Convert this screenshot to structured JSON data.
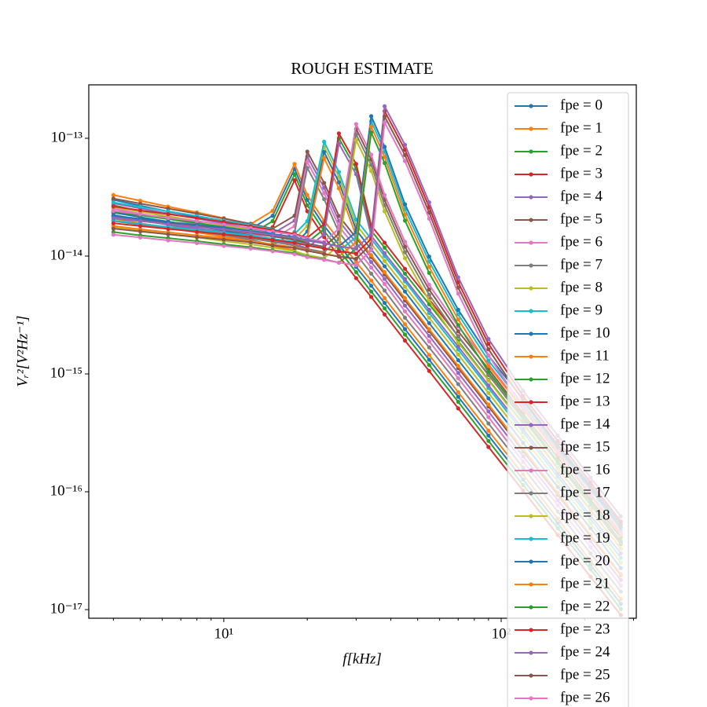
{
  "chart_data": {
    "type": "line",
    "title": "ROUGH ESTIMATE",
    "xlabel": "f[kHz]",
    "ylabel": "Vᵣ²[V²Hz⁻¹]",
    "xscale": "log",
    "yscale": "log",
    "legend": "upper right",
    "grid": false,
    "xlim": [
      3.26,
      307
    ],
    "ylim": [
      8.45e-18,
      2.84e-13
    ],
    "xticks": [
      {
        "value": 10,
        "label": "10¹"
      },
      {
        "value": 100,
        "label": "10²"
      }
    ],
    "xminorticks": [
      4,
      5,
      6,
      7,
      8,
      9,
      20,
      30,
      40,
      50,
      60,
      70,
      80,
      90,
      200,
      300
    ],
    "yticks": [
      {
        "value": 1e-17,
        "label": "10⁻¹⁷"
      },
      {
        "value": 1e-16,
        "label": "10⁻¹⁶"
      },
      {
        "value": 1e-15,
        "label": "10⁻¹⁵"
      },
      {
        "value": 1e-14,
        "label": "10⁻¹⁴"
      },
      {
        "value": 1e-13,
        "label": "10⁻¹³"
      }
    ],
    "x": [
      4,
      5,
      6.3,
      8,
      10,
      12.5,
      15,
      18,
      20,
      23,
      26,
      30,
      34,
      38,
      45,
      55,
      70,
      90,
      120,
      160,
      210,
      270
    ],
    "series": [
      {
        "name": "fpe = 0",
        "color": "#1f77b4",
        "values": [
          3e-14,
          2.68e-14,
          2.39e-14,
          2.14e-14,
          1.91e-14,
          1.7e-14,
          2.2e-14,
          5.5e-14,
          3e-14,
          1.81e-14,
          1.25e-14,
          8.1e-15,
          5.6e-15,
          4e-15,
          2.4e-15,
          1.32e-15,
          6.4e-16,
          3e-16,
          1.27e-16,
          5.4e-17,
          2.4e-17,
          1.12e-17
        ]
      },
      {
        "name": "fpe = 1",
        "color": "#ff7f0e",
        "values": [
          3.3e-14,
          2.95e-14,
          2.63e-14,
          2.35e-14,
          2.1e-14,
          1.87e-14,
          2.42e-14,
          6.05e-14,
          3.3e-14,
          1.99e-14,
          1.38e-14,
          8.9e-15,
          6.2e-15,
          4.4e-15,
          2.64e-15,
          1.45e-15,
          7e-16,
          3.3e-16,
          1.4e-16,
          5.9e-17,
          2.6e-17,
          1.23e-17
        ]
      },
      {
        "name": "fpe = 2",
        "color": "#2ca02c",
        "values": [
          2.7e-14,
          2.41e-14,
          2.15e-14,
          1.93e-14,
          1.72e-14,
          1.53e-14,
          1.98e-14,
          4.95e-14,
          2.7e-14,
          1.63e-14,
          1.13e-14,
          7.3e-15,
          5e-15,
          3.6e-15,
          2.16e-15,
          1.19e-15,
          5.8e-16,
          2.7e-16,
          1.14e-16,
          4.9e-17,
          2.2e-17,
          1.01e-17
        ]
      },
      {
        "name": "fpe = 3",
        "color": "#d62728",
        "values": [
          2.4e-14,
          2.14e-14,
          1.91e-14,
          1.71e-14,
          1.53e-14,
          1.36e-14,
          1.76e-14,
          4.4e-14,
          2.4e-14,
          1.45e-14,
          1e-14,
          6.5e-15,
          4.5e-15,
          3.2e-15,
          1.92e-15,
          1.06e-15,
          5.1e-16,
          2.4e-16,
          1.02e-16,
          4.3e-17,
          1.9e-17,
          9e-18
        ]
      },
      {
        "name": "fpe = 4",
        "color": "#9467bd",
        "values": [
          2.8e-14,
          2.54e-14,
          2.3e-14,
          2.08e-14,
          1.89e-14,
          1.71e-14,
          1.55e-14,
          2e-14,
          7e-14,
          3.8e-14,
          1.99e-14,
          1.3e-14,
          8.9e-15,
          6.4e-15,
          3.8e-15,
          2.1e-15,
          1.02e-15,
          4.8e-16,
          2e-16,
          8.5e-17,
          3.8e-17,
          1.78e-17
        ]
      },
      {
        "name": "fpe = 5",
        "color": "#8c564b",
        "values": [
          3.08e-14,
          2.79e-14,
          2.53e-14,
          2.29e-14,
          2.08e-14,
          1.88e-14,
          1.71e-14,
          2.2e-14,
          7.7e-14,
          4.18e-14,
          2.19e-14,
          1.43e-14,
          9.8e-15,
          7e-15,
          4.2e-15,
          2.31e-15,
          1.12e-15,
          5.3e-16,
          2.2e-16,
          9.4e-17,
          4.2e-17,
          1.96e-17
        ]
      },
      {
        "name": "fpe = 6",
        "color": "#e377c2",
        "values": [
          2.52e-14,
          2.29e-14,
          2.07e-14,
          1.87e-14,
          1.7e-14,
          1.54e-14,
          1.4e-14,
          1.8e-14,
          6.3e-14,
          3.42e-14,
          1.79e-14,
          1.17e-14,
          8e-15,
          5.8e-15,
          3.4e-15,
          1.89e-15,
          9.2e-16,
          4.3e-16,
          1.8e-16,
          7.7e-17,
          3.4e-17,
          1.6e-17
        ]
      },
      {
        "name": "fpe = 7",
        "color": "#7f7f7f",
        "values": [
          2.24e-14,
          2.03e-14,
          1.84e-14,
          1.66e-14,
          1.51e-14,
          1.37e-14,
          1.24e-14,
          1.6e-14,
          5.6e-14,
          3.04e-14,
          1.59e-14,
          1.04e-14,
          7.1e-15,
          5.1e-15,
          3e-15,
          1.68e-15,
          8.2e-16,
          3.8e-16,
          1.6e-16,
          6.8e-17,
          3e-17,
          1.42e-17
        ]
      },
      {
        "name": "fpe = 8",
        "color": "#bcbd22",
        "values": [
          2.6e-14,
          2.38e-14,
          2.18e-14,
          1.99e-14,
          1.82e-14,
          1.67e-14,
          1.53e-14,
          1.4e-14,
          1.8e-14,
          8.5e-14,
          4.7e-14,
          1.85e-14,
          1.27e-14,
          9.1e-15,
          5.5e-15,
          3e-15,
          1.46e-15,
          6.9e-16,
          2.9e-16,
          1.22e-16,
          5.4e-17,
          2.5e-17
        ]
      },
      {
        "name": "fpe = 9",
        "color": "#17becf",
        "values": [
          2.86e-14,
          2.62e-14,
          2.4e-14,
          2.19e-14,
          2e-14,
          1.84e-14,
          1.68e-14,
          1.54e-14,
          1.98e-14,
          9.35e-14,
          5.17e-14,
          2.04e-14,
          1.4e-14,
          1e-14,
          6.1e-15,
          3.3e-15,
          1.61e-15,
          7.6e-16,
          3.2e-16,
          1.34e-16,
          5.9e-17,
          2.75e-17
        ]
      },
      {
        "name": "fpe = 10",
        "color": "#1f77b4",
        "values": [
          2.34e-14,
          2.14e-14,
          1.96e-14,
          1.79e-14,
          1.64e-14,
          1.5e-14,
          1.38e-14,
          1.26e-14,
          1.62e-14,
          7.65e-14,
          4.23e-14,
          1.67e-14,
          1.14e-14,
          8.2e-15,
          5e-15,
          2.7e-15,
          1.31e-15,
          6.2e-16,
          2.6e-16,
          1.1e-16,
          4.9e-17,
          2.25e-17
        ]
      },
      {
        "name": "fpe = 11",
        "color": "#ff7f0e",
        "values": [
          2.08e-14,
          1.9e-14,
          1.74e-14,
          1.59e-14,
          1.46e-14,
          1.34e-14,
          1.22e-14,
          1.12e-14,
          1.44e-14,
          6.8e-14,
          3.76e-14,
          1.48e-14,
          1.02e-14,
          7.3e-15,
          4.4e-15,
          2.4e-15,
          1.17e-15,
          5.5e-16,
          2.3e-16,
          9.8e-17,
          4.3e-17,
          2e-17
        ]
      },
      {
        "name": "fpe = 12",
        "color": "#2ca02c",
        "values": [
          2.4e-14,
          2.22e-14,
          2.06e-14,
          1.91e-14,
          1.77e-14,
          1.63e-14,
          1.51e-14,
          1.4e-14,
          1.3e-14,
          1.7e-14,
          1e-13,
          5.5e-14,
          1.65e-14,
          1.18e-14,
          7.1e-15,
          3.9e-15,
          1.9e-15,
          8.9e-16,
          3.8e-16,
          1.59e-16,
          7e-17,
          3.3e-17
        ]
      },
      {
        "name": "fpe = 13",
        "color": "#d62728",
        "values": [
          2.64e-14,
          2.44e-14,
          2.27e-14,
          2.1e-14,
          1.95e-14,
          1.79e-14,
          1.66e-14,
          1.54e-14,
          1.43e-14,
          1.87e-14,
          1.1e-13,
          6.05e-14,
          1.82e-14,
          1.3e-14,
          7.8e-15,
          4.3e-15,
          2.09e-15,
          9.8e-16,
          4.2e-16,
          1.75e-16,
          7.7e-17,
          3.6e-17
        ]
      },
      {
        "name": "fpe = 14",
        "color": "#9467bd",
        "values": [
          2.16e-14,
          2e-14,
          1.85e-14,
          1.72e-14,
          1.59e-14,
          1.47e-14,
          1.36e-14,
          1.26e-14,
          1.17e-14,
          1.53e-14,
          9e-14,
          4.95e-14,
          1.49e-14,
          1.06e-14,
          6.4e-15,
          3.5e-15,
          1.71e-15,
          8e-16,
          3.4e-16,
          1.43e-16,
          6.3e-17,
          3e-17
        ]
      },
      {
        "name": "fpe = 15",
        "color": "#8c564b",
        "values": [
          2.2e-14,
          2.06e-14,
          1.92e-14,
          1.8e-14,
          1.68e-14,
          1.57e-14,
          1.47e-14,
          1.37e-14,
          1.28e-14,
          1.2e-14,
          1.55e-14,
          1.2e-13,
          6.6e-14,
          3e-14,
          1.2e-14,
          5.2e-15,
          2.3e-15,
          1.1e-15,
          4.6e-16,
          1.95e-16,
          8.6e-17,
          4.1e-17
        ]
      },
      {
        "name": "fpe = 16",
        "color": "#e377c2",
        "values": [
          2.42e-14,
          2.27e-14,
          2.11e-14,
          1.98e-14,
          1.85e-14,
          1.73e-14,
          1.62e-14,
          1.51e-14,
          1.41e-14,
          1.32e-14,
          1.71e-14,
          1.32e-13,
          7.26e-14,
          3.3e-14,
          1.32e-14,
          5.7e-15,
          2.53e-15,
          1.21e-15,
          5.1e-16,
          2.15e-16,
          9.5e-17,
          4.5e-17
        ]
      },
      {
        "name": "fpe = 17",
        "color": "#7f7f7f",
        "values": [
          1.98e-14,
          1.85e-14,
          1.73e-14,
          1.62e-14,
          1.51e-14,
          1.41e-14,
          1.32e-14,
          1.23e-14,
          1.15e-14,
          1.08e-14,
          1.4e-14,
          1.08e-13,
          5.94e-14,
          2.7e-14,
          1.08e-14,
          4.7e-15,
          2.07e-15,
          9.9e-16,
          4.1e-16,
          1.76e-16,
          7.7e-17,
          3.7e-17
        ]
      },
      {
        "name": "fpe = 18",
        "color": "#bcbd22",
        "values": [
          1.76e-14,
          1.65e-14,
          1.54e-14,
          1.44e-14,
          1.34e-14,
          1.26e-14,
          1.18e-14,
          1.1e-14,
          1.02e-14,
          9.6e-15,
          1.24e-14,
          9.6e-14,
          5.28e-14,
          2.4e-14,
          9.6e-15,
          4.2e-15,
          1.84e-15,
          8.8e-16,
          3.7e-16,
          1.56e-16,
          6.9e-17,
          3.3e-17
        ]
      },
      {
        "name": "fpe = 19",
        "color": "#17becf",
        "values": [
          2e-14,
          1.88e-14,
          1.77e-14,
          1.67e-14,
          1.58e-14,
          1.49e-14,
          1.4e-14,
          1.32e-14,
          1.24e-14,
          1.17e-14,
          1.1e-14,
          1.45e-14,
          1.4e-13,
          7.7e-14,
          2.5e-14,
          9e-15,
          3.2e-15,
          1.3e-15,
          5.5e-16,
          2.3e-16,
          1.03e-16,
          4.8e-17
        ]
      },
      {
        "name": "fpe = 20",
        "color": "#1f77b4",
        "values": [
          2.2e-14,
          2.07e-14,
          1.95e-14,
          1.84e-14,
          1.74e-14,
          1.64e-14,
          1.54e-14,
          1.45e-14,
          1.36e-14,
          1.29e-14,
          1.21e-14,
          1.6e-14,
          1.54e-13,
          8.47e-14,
          2.75e-14,
          9.9e-15,
          3.5e-15,
          1.43e-15,
          6.1e-16,
          2.5e-16,
          1.13e-16,
          5.3e-17
        ]
      },
      {
        "name": "fpe = 21",
        "color": "#ff7f0e",
        "values": [
          1.8e-14,
          1.69e-14,
          1.59e-14,
          1.5e-14,
          1.42e-14,
          1.34e-14,
          1.26e-14,
          1.19e-14,
          1.12e-14,
          1.05e-14,
          9.9e-15,
          1.31e-14,
          1.26e-13,
          6.93e-14,
          2.25e-14,
          8.1e-15,
          2.9e-15,
          1.17e-15,
          5e-16,
          2.1e-16,
          9.3e-17,
          4.3e-17
        ]
      },
      {
        "name": "fpe = 22",
        "color": "#2ca02c",
        "values": [
          1.6e-14,
          1.5e-14,
          1.42e-14,
          1.34e-14,
          1.26e-14,
          1.19e-14,
          1.12e-14,
          1.06e-14,
          9.9e-15,
          9.4e-15,
          8.8e-15,
          1.16e-14,
          1.12e-13,
          6.16e-14,
          2e-14,
          7.2e-15,
          2.6e-15,
          1.04e-15,
          4.4e-16,
          1.8e-16,
          8.2e-17,
          3.8e-17
        ]
      },
      {
        "name": "fpe = 23",
        "color": "#d62728",
        "values": [
          1.9e-14,
          1.8e-14,
          1.7e-14,
          1.61e-14,
          1.53e-14,
          1.45e-14,
          1.37e-14,
          1.3e-14,
          1.23e-14,
          1.16e-14,
          1.1e-14,
          1.05e-14,
          1.4e-14,
          1.7e-13,
          8e-14,
          2.6e-14,
          6e-15,
          1.8e-15,
          6.5e-16,
          2.7e-16,
          1.2e-16,
          5.6e-17
        ]
      },
      {
        "name": "fpe = 24",
        "color": "#9467bd",
        "values": [
          2.09e-14,
          1.98e-14,
          1.87e-14,
          1.77e-14,
          1.68e-14,
          1.6e-14,
          1.51e-14,
          1.43e-14,
          1.35e-14,
          1.28e-14,
          1.21e-14,
          1.16e-14,
          1.54e-14,
          1.87e-13,
          8.8e-14,
          2.86e-14,
          6.6e-15,
          1.98e-15,
          7.2e-16,
          3e-16,
          1.32e-16,
          6.2e-17
        ]
      },
      {
        "name": "fpe = 25",
        "color": "#8c564b",
        "values": [
          1.71e-14,
          1.62e-14,
          1.53e-14,
          1.45e-14,
          1.38e-14,
          1.31e-14,
          1.23e-14,
          1.17e-14,
          1.11e-14,
          1.04e-14,
          9.9e-15,
          9.5e-15,
          1.26e-14,
          1.53e-13,
          7.2e-14,
          2.34e-14,
          5.4e-15,
          1.62e-15,
          5.9e-16,
          2.4e-16,
          1.08e-16,
          5e-17
        ]
      },
      {
        "name": "fpe = 26",
        "color": "#e377c2",
        "values": [
          1.52e-14,
          1.44e-14,
          1.36e-14,
          1.29e-14,
          1.22e-14,
          1.16e-14,
          1.1e-14,
          1.04e-14,
          9.8e-15,
          9.3e-15,
          8.8e-15,
          8.4e-15,
          1.12e-14,
          1.36e-13,
          6.4e-14,
          2.08e-14,
          4.8e-15,
          1.44e-15,
          5.2e-16,
          2.2e-16,
          9.6e-17,
          4.5e-17
        ]
      }
    ]
  }
}
